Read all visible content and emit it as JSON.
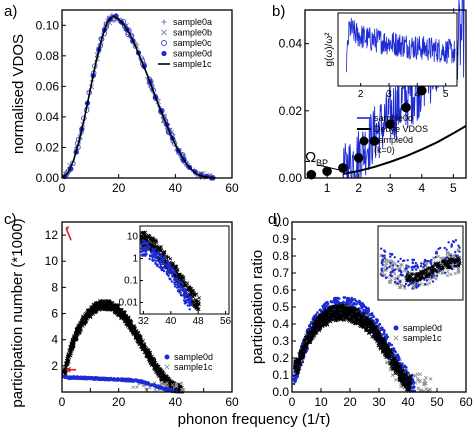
{
  "figure": {
    "shared_xlabel": "phonon frequency (1/τ)",
    "colors": {
      "blue": "#1d2bd6",
      "black": "#000000",
      "grey": "#8c8c8c",
      "red": "#e02020",
      "light_blue": "#7b8be8"
    }
  },
  "chart_data": [
    {
      "panel": "a)",
      "type": "scatter",
      "xlabel": "",
      "ylabel": "normalised VDOS",
      "xlim": [
        0,
        60
      ],
      "ylim": [
        0,
        0.11
      ],
      "xticks": [
        0,
        20,
        40,
        60
      ],
      "yticks": [
        0.0,
        0.02,
        0.04,
        0.06,
        0.08,
        0.1
      ],
      "ytick_labels": [
        "0.00",
        "0.02",
        "0.04",
        "0.06",
        "0.08",
        "0.10"
      ],
      "legend": [
        "sample0a",
        "sample0b",
        "sample0c",
        "sample0d",
        "sample1c"
      ],
      "legend_position": "top-right",
      "series": [
        {
          "name": "sample0a",
          "marker": "plus",
          "x": [
            2,
            4,
            6,
            8,
            10,
            12,
            14,
            16,
            18,
            20,
            22,
            24,
            26,
            28,
            30,
            32,
            34,
            36,
            38,
            40,
            42,
            44,
            46,
            48,
            50,
            52,
            54
          ],
          "y": [
            0.003,
            0.011,
            0.024,
            0.04,
            0.058,
            0.076,
            0.091,
            0.102,
            0.106,
            0.104,
            0.1,
            0.094,
            0.086,
            0.077,
            0.068,
            0.058,
            0.048,
            0.039,
            0.03,
            0.022,
            0.015,
            0.009,
            0.005,
            0.002,
            0.001,
            0.0005,
            0.0
          ]
        },
        {
          "name": "sample0b",
          "marker": "x",
          "x": [
            2,
            6,
            10,
            14,
            18,
            22,
            26,
            30,
            34,
            38,
            42,
            46,
            50
          ],
          "y": [
            0.003,
            0.024,
            0.058,
            0.091,
            0.106,
            0.1,
            0.086,
            0.068,
            0.048,
            0.03,
            0.015,
            0.005,
            0.001
          ]
        },
        {
          "name": "sample0c",
          "marker": "open-circle",
          "x": [
            3,
            7,
            11,
            15,
            19,
            23,
            27,
            31,
            35,
            39,
            43,
            47,
            51
          ],
          "y": [
            0.006,
            0.032,
            0.067,
            0.097,
            0.106,
            0.097,
            0.082,
            0.063,
            0.044,
            0.026,
            0.012,
            0.004,
            0.001
          ]
        },
        {
          "name": "sample0d",
          "marker": "filled-circle",
          "x": [
            1,
            3,
            5,
            7,
            9,
            11,
            13,
            15,
            17,
            19,
            21,
            23,
            25,
            27,
            29,
            31,
            33,
            35,
            37,
            39,
            41,
            43,
            45,
            47,
            49,
            51,
            53
          ],
          "y": [
            0.001,
            0.006,
            0.017,
            0.032,
            0.049,
            0.067,
            0.084,
            0.097,
            0.104,
            0.106,
            0.102,
            0.097,
            0.09,
            0.082,
            0.073,
            0.063,
            0.053,
            0.044,
            0.035,
            0.026,
            0.018,
            0.012,
            0.007,
            0.004,
            0.002,
            0.001,
            0.0
          ]
        },
        {
          "name": "sample1c",
          "marker": "line",
          "x": [
            0,
            2,
            4,
            6,
            8,
            10,
            12,
            14,
            16,
            18,
            20,
            22,
            24,
            26,
            28,
            30,
            32,
            34,
            36,
            38,
            40,
            42,
            44,
            46,
            48,
            50,
            52,
            54
          ],
          "y": [
            0.0,
            0.003,
            0.011,
            0.024,
            0.04,
            0.058,
            0.076,
            0.091,
            0.102,
            0.106,
            0.104,
            0.1,
            0.094,
            0.086,
            0.077,
            0.068,
            0.058,
            0.048,
            0.039,
            0.03,
            0.022,
            0.015,
            0.009,
            0.005,
            0.002,
            0.001,
            0.0005,
            0.0
          ]
        }
      ]
    },
    {
      "panel": "b)",
      "type": "line",
      "xlabel": "",
      "ylabel": "",
      "xlim": [
        0.3,
        5.4
      ],
      "ylim": [
        0,
        0.05
      ],
      "xticks": [
        1,
        2,
        3,
        4,
        5
      ],
      "yticks": [
        0.0,
        0.02,
        0.04
      ],
      "ytick_labels": [
        "0.00",
        "0.02",
        "0.04"
      ],
      "legend": [
        "sample0d",
        "Debye VDOS",
        "sample0d (k=0)"
      ],
      "legend_position": "center-right",
      "annotation": "ΩBP",
      "series": [
        {
          "name": "sample0d",
          "marker": "line",
          "x": [
            1.5,
            1.7,
            1.9,
            2.1,
            2.3,
            2.5,
            2.7,
            2.9,
            3.1,
            3.3,
            3.5,
            3.7,
            3.9,
            4.1,
            4.3,
            4.5,
            4.7,
            4.9,
            5.1,
            5.3
          ],
          "y": [
            0.002,
            0.004,
            0.006,
            0.008,
            0.01,
            0.013,
            0.015,
            0.017,
            0.02,
            0.022,
            0.024,
            0.026,
            0.028,
            0.031,
            0.033,
            0.035,
            0.037,
            0.039,
            0.041,
            0.042
          ]
        },
        {
          "name": "Debye VDOS",
          "marker": "line",
          "x": [
            1.5,
            2,
            2.5,
            3,
            3.5,
            4,
            4.5,
            5,
            5.4
          ],
          "y": [
            0.0012,
            0.0021,
            0.0033,
            0.0048,
            0.0065,
            0.0085,
            0.0107,
            0.0133,
            0.0155
          ]
        },
        {
          "name": "sample0d (k=0)",
          "marker": "filled-circle",
          "x": [
            0.5,
            1.0,
            1.5,
            2.0,
            2.5,
            3.0,
            3.5,
            4.0,
            4.5,
            5.0
          ],
          "y": [
            0.001,
            0.002,
            0.003,
            0.006,
            0.011,
            0.016,
            0.021,
            0.026,
            0.031,
            0.037
          ]
        }
      ],
      "inset": {
        "ylabel": "g(ω)/ω²",
        "xlim": [
          1.2,
          5.4
        ],
        "xticks": [
          2,
          3,
          4,
          5
        ],
        "series": [
          {
            "name": "sample0d",
            "x": [
              1.5,
              1.6,
              1.8,
              2.0,
              2.3,
              2.6,
              3.0,
              3.5,
              4.0,
              4.5,
              5.0,
              5.3
            ],
            "y": [
              0.4,
              1.0,
              0.9,
              0.85,
              0.8,
              0.78,
              0.74,
              0.7,
              0.66,
              0.63,
              0.6,
              0.58
            ]
          }
        ]
      }
    },
    {
      "panel": "c)",
      "type": "scatter",
      "xlabel": "",
      "ylabel": "participation number (*1000)",
      "xlim": [
        0,
        60
      ],
      "ylim": [
        0,
        13
      ],
      "xticks": [
        0,
        10,
        20,
        30,
        40,
        50,
        60
      ],
      "yticks": [
        2,
        4,
        6,
        8,
        10,
        12
      ],
      "legend": [
        "sample0d",
        "sample1c"
      ],
      "legend_position": "bottom-right",
      "series": [
        {
          "name": "sample0d",
          "marker": "filled-circle",
          "x": [
            0.5,
            2,
            5,
            10,
            15,
            20,
            25,
            28,
            31,
            33,
            35,
            38,
            40
          ],
          "y": [
            1.2,
            1.1,
            1.1,
            1.05,
            1.0,
            0.95,
            0.9,
            0.8,
            0.6,
            0.45,
            0.3,
            0.15,
            0.05
          ]
        },
        {
          "name": "sample1c",
          "marker": "x",
          "x": [
            1,
            3,
            5,
            8,
            11,
            14,
            17,
            20,
            23,
            26,
            29,
            32,
            35,
            38,
            40,
            42
          ],
          "y": [
            1.5,
            3.2,
            4.4,
            5.6,
            6.3,
            6.7,
            6.6,
            6.2,
            5.5,
            4.5,
            3.4,
            2.3,
            1.3,
            0.6,
            0.3,
            0.1
          ]
        }
      ],
      "inset": {
        "type": "scatter",
        "scale": "log",
        "xlim": [
          31,
          57
        ],
        "xticks": [
          32,
          40,
          48,
          56
        ],
        "ylim_log": [
          0.003,
          30
        ],
        "yticks": [
          0.01,
          0.1,
          1,
          10
        ],
        "ytick_labels": [
          "0.01",
          "0.1",
          "1",
          "10"
        ],
        "series": [
          {
            "name": "sample0d",
            "x": [
              32,
              34,
              36,
              38,
              40,
              42,
              44,
              46
            ],
            "y": [
              3,
              2,
              1,
              0.5,
              0.2,
              0.07,
              0.02,
              0.008
            ]
          },
          {
            "name": "sample1c",
            "x": [
              32,
              34,
              36,
              38,
              40,
              42,
              44,
              46,
              48
            ],
            "y": [
              8,
              5,
              2.5,
              1,
              0.4,
              0.15,
              0.05,
              0.02,
              0.008
            ]
          }
        ]
      }
    },
    {
      "panel": "d)",
      "type": "scatter",
      "xlabel": "phonon frequency (1/τ)",
      "ylabel": "participation ratio",
      "xlim": [
        0,
        60
      ],
      "ylim": [
        0,
        1.0
      ],
      "xticks": [
        0,
        10,
        20,
        30,
        40,
        50,
        60
      ],
      "yticks": [
        0.0,
        0.1,
        0.2,
        0.3,
        0.4,
        0.5,
        0.6,
        0.7,
        0.8,
        0.9,
        1.0
      ],
      "legend": [
        "sample0d",
        "sample1c"
      ],
      "legend_position": "bottom-right",
      "series": [
        {
          "name": "sample0d",
          "marker": "filled-circle",
          "x": [
            1,
            3,
            5,
            8,
            11,
            14,
            17,
            20,
            23,
            26,
            29,
            32,
            35,
            38,
            40,
            42
          ],
          "y": [
            0.1,
            0.2,
            0.3,
            0.4,
            0.46,
            0.49,
            0.5,
            0.5,
            0.48,
            0.44,
            0.38,
            0.3,
            0.2,
            0.12,
            0.07,
            0.03
          ]
        },
        {
          "name": "sample1c",
          "marker": "x",
          "x": [
            2,
            5,
            8,
            11,
            14,
            17,
            20,
            23,
            26,
            29,
            32,
            35,
            38,
            40
          ],
          "y": [
            0.15,
            0.3,
            0.38,
            0.43,
            0.46,
            0.47,
            0.46,
            0.44,
            0.4,
            0.34,
            0.26,
            0.17,
            0.09,
            0.05
          ]
        }
      ],
      "inset": {
        "type": "scatter",
        "xlim": [
          30,
          60
        ],
        "xticks": [
          30,
          40,
          50,
          60
        ],
        "series": [
          {
            "name": "sample0d",
            "x": [
              32,
              35,
              38,
              41,
              44,
              47,
              50,
              53,
              56,
              59
            ],
            "y": [
              0.5,
              0.45,
              0.4,
              0.35,
              0.35,
              0.4,
              0.45,
              0.55,
              0.6,
              0.62
            ]
          },
          {
            "name": "sample1c",
            "x": [
              32,
              35,
              38,
              41,
              44,
              47,
              50,
              53,
              56,
              59
            ],
            "y": [
              0.45,
              0.38,
              0.32,
              0.3,
              0.32,
              0.36,
              0.42,
              0.48,
              0.5,
              0.52
            ]
          }
        ]
      }
    }
  ]
}
